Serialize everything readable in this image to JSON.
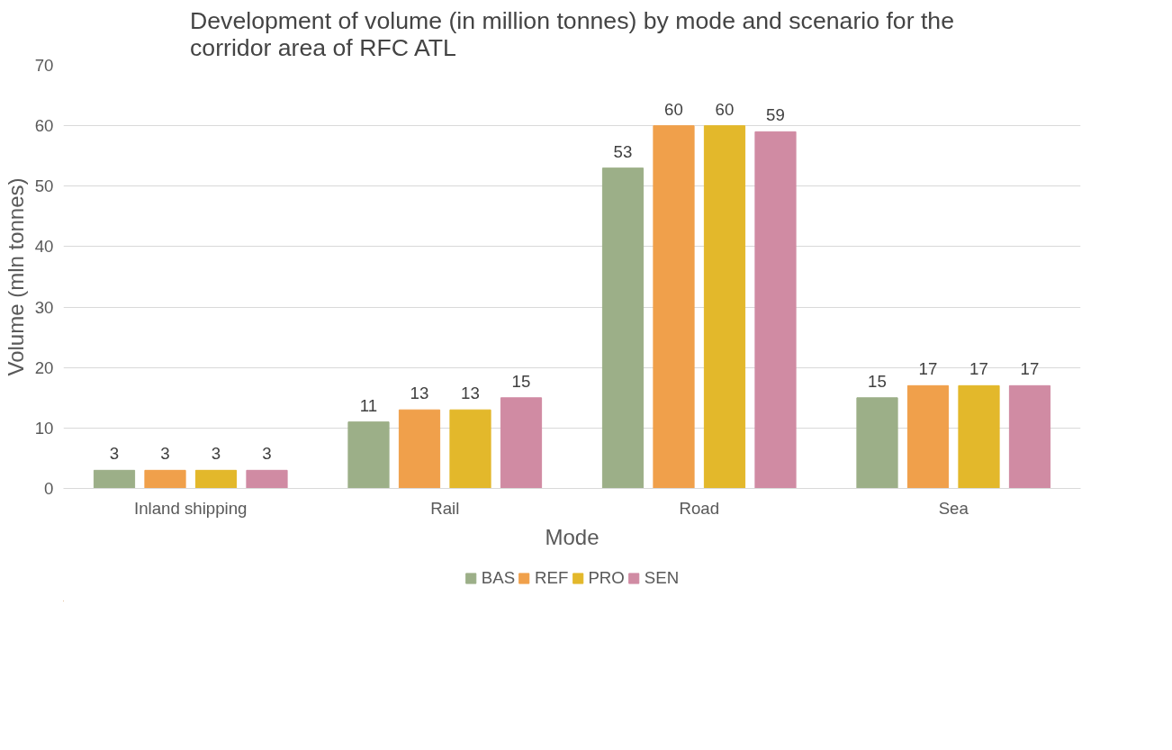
{
  "chart_data": {
    "type": "bar",
    "title": "Development of volume (in million tonnes) by mode and scenario for the corridor area of RFC ATL",
    "xlabel": "Mode",
    "ylabel": "Volume (mln tonnes)",
    "categories": [
      "Inland shipping",
      "Rail",
      "Road",
      "Sea"
    ],
    "series": [
      {
        "name": "BAS",
        "color": "#9caf88",
        "values": [
          3,
          11,
          53,
          15
        ]
      },
      {
        "name": "REF",
        "color": "#f0a04b",
        "values": [
          3,
          13,
          60,
          17
        ]
      },
      {
        "name": "PRO",
        "color": "#e3b82b",
        "values": [
          3,
          13,
          60,
          17
        ]
      },
      {
        "name": "SEN",
        "color": "#d08ba3",
        "values": [
          3,
          15,
          59,
          17
        ]
      }
    ],
    "ylim": [
      0,
      70
    ],
    "yticks": [
      0,
      10,
      20,
      30,
      40,
      50,
      60,
      70
    ],
    "grid": "y",
    "legend": "bottom",
    "data_labels": true
  }
}
